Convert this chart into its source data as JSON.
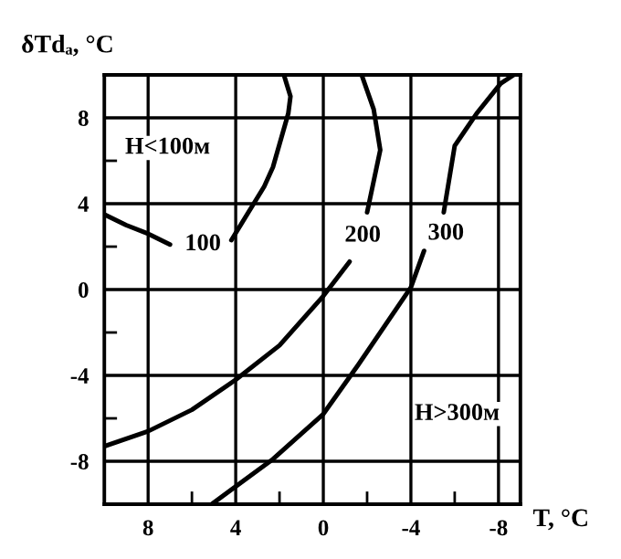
{
  "chart_data": {
    "type": "line",
    "xlabel": "T, °C",
    "ylabel": "δTdₐ, °C",
    "xlim": [
      10,
      -9
    ],
    "ylim": [
      -10,
      10
    ],
    "xticks": [
      8,
      {
        "value": 6,
        "label": null
      },
      4,
      {
        "value": 2,
        "label": null
      },
      0,
      {
        "value": -2,
        "label": null
      },
      -4,
      {
        "value": -6,
        "label": null
      },
      -8
    ],
    "yticks": [
      -8,
      {
        "value": -6,
        "label": null
      },
      -4,
      {
        "value": -2,
        "label": null
      },
      0,
      {
        "value": 2,
        "label": null
      },
      4,
      {
        "value": 6,
        "label": null
      },
      8
    ],
    "grid": true,
    "marker": "none",
    "line_style": "solid",
    "series": [
      {
        "color": "#000000",
        "x": [
          10,
          9,
          8,
          7,
          null,
          4.2,
          2.7,
          2.3,
          1.6,
          1.5,
          1.8
        ],
        "values": [
          3.5,
          3.0,
          2.6,
          2.1,
          null,
          2.3,
          4.8,
          5.7,
          8.2,
          9.0,
          10
        ]
      },
      {
        "color": "#000000",
        "x": [
          10,
          8,
          6,
          4,
          2,
          0,
          -1.2,
          null,
          -2.0,
          -2.6,
          -2.3,
          -1.75
        ],
        "values": [
          -7.3,
          -6.6,
          -5.6,
          -4.2,
          -2.6,
          -0.3,
          1.3,
          null,
          3.6,
          6.5,
          8.4,
          10
        ]
      },
      {
        "color": "#000000",
        "x": [
          5.1,
          2.3,
          0,
          -1.6,
          -4,
          -4.6,
          null,
          -5.5,
          -6,
          -7,
          -8.1,
          -8.7
        ],
        "values": [
          -10,
          -7.9,
          -5.8,
          -3.5,
          0.1,
          1.8,
          null,
          3.6,
          6.7,
          8.2,
          9.6,
          10
        ]
      }
    ],
    "annotations": [
      {
        "text": "100",
        "x": 5.5,
        "y": 2.1
      },
      {
        "text": "200",
        "x": -1.8,
        "y": 2.5
      },
      {
        "text": "300",
        "x": -5.6,
        "y": 2.6
      },
      "H<100м",
      "H>300м"
    ]
  }
}
